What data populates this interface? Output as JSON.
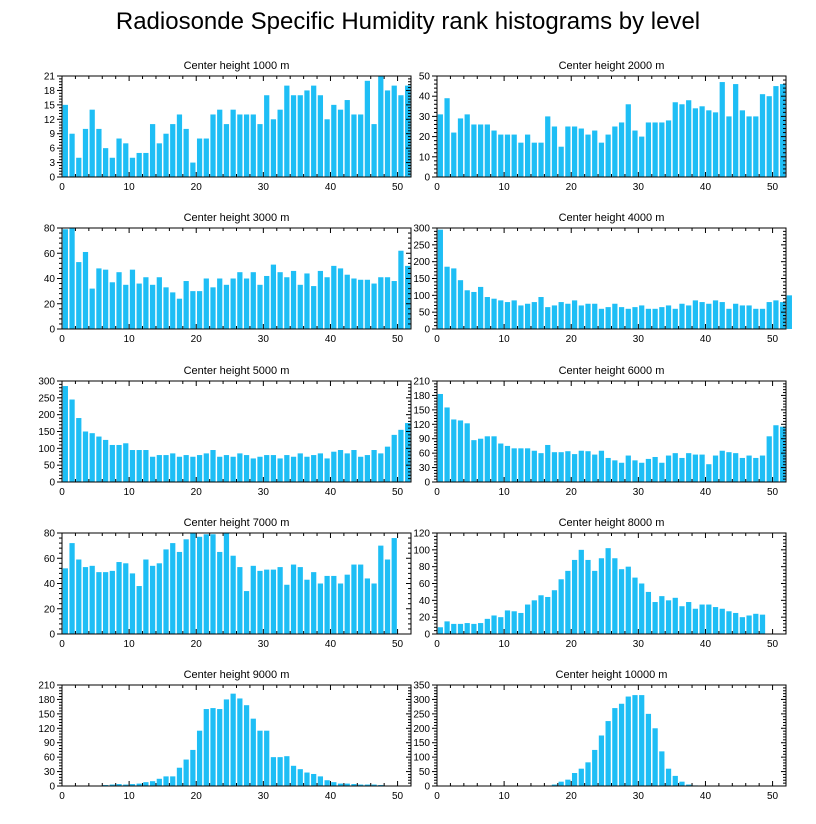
{
  "figure_title": "Radiosonde Specific Humidity rank histograms by level",
  "bar_color": "#1EBEF5",
  "chart_data": [
    {
      "type": "bar",
      "title": "Center height 1000 m",
      "xlim": [
        0,
        52
      ],
      "ylim": [
        0,
        21
      ],
      "xticks": [
        0,
        10,
        20,
        30,
        40,
        50
      ],
      "yticks": [
        0,
        3,
        6,
        9,
        12,
        15,
        18,
        21
      ],
      "values": [
        15,
        9,
        4,
        10,
        14,
        10,
        6,
        4,
        8,
        7,
        4,
        5,
        5,
        11,
        7,
        9,
        11,
        13,
        10,
        3,
        8,
        8,
        13,
        14,
        11,
        14,
        13,
        13,
        13,
        11,
        17,
        12,
        14,
        19,
        17,
        17,
        18,
        19,
        17,
        12,
        15,
        14,
        16,
        13,
        13,
        20,
        11,
        21,
        18,
        19,
        17,
        19
      ]
    },
    {
      "type": "bar",
      "title": "Center height 2000 m",
      "xlim": [
        0,
        52
      ],
      "ylim": [
        0,
        50
      ],
      "xticks": [
        0,
        10,
        20,
        30,
        40,
        50
      ],
      "yticks": [
        0,
        10,
        20,
        30,
        40,
        50
      ],
      "values": [
        31,
        39,
        22,
        29,
        31,
        26,
        26,
        26,
        23,
        21,
        21,
        21,
        17,
        21,
        17,
        17,
        30,
        25,
        15,
        25,
        25,
        24,
        21,
        23,
        17,
        21,
        25,
        27,
        36,
        23,
        20,
        27,
        27,
        27,
        28,
        37,
        36,
        38,
        34,
        35,
        33,
        32,
        47,
        30,
        46,
        33,
        30,
        30,
        41,
        40,
        45,
        46
      ]
    },
    {
      "type": "bar",
      "title": "Center height 3000 m",
      "xlim": [
        0,
        52
      ],
      "ylim": [
        0,
        80
      ],
      "xticks": [
        0,
        10,
        20,
        30,
        40,
        50
      ],
      "yticks": [
        0,
        20,
        40,
        60,
        80
      ],
      "values": [
        79,
        80,
        53,
        61,
        32,
        48,
        47,
        37,
        45,
        35,
        47,
        36,
        41,
        35,
        41,
        33,
        29,
        24,
        38,
        30,
        30,
        40,
        33,
        40,
        35,
        40,
        45,
        40,
        45,
        35,
        42,
        51,
        45,
        41,
        46,
        35,
        44,
        34,
        46,
        41,
        50,
        48,
        43,
        40,
        39,
        39,
        36,
        41,
        41,
        38,
        62,
        50
      ]
    },
    {
      "type": "bar",
      "title": "Center height 4000 m",
      "xlim": [
        0,
        52
      ],
      "ylim": [
        0,
        300
      ],
      "xticks": [
        0,
        10,
        20,
        30,
        40,
        50
      ],
      "yticks": [
        0,
        50,
        100,
        150,
        200,
        250,
        300
      ],
      "values": [
        295,
        185,
        180,
        145,
        115,
        110,
        125,
        95,
        90,
        85,
        80,
        85,
        70,
        75,
        80,
        95,
        65,
        70,
        80,
        75,
        85,
        70,
        75,
        75,
        60,
        65,
        75,
        65,
        60,
        65,
        70,
        60,
        60,
        65,
        70,
        60,
        75,
        70,
        85,
        80,
        75,
        85,
        80,
        60,
        75,
        70,
        70,
        60,
        60,
        80,
        85,
        80,
        100
      ]
    },
    {
      "type": "bar",
      "title": "Center height 5000 m",
      "xlim": [
        0,
        52
      ],
      "ylim": [
        0,
        300
      ],
      "xticks": [
        0,
        10,
        20,
        30,
        40,
        50
      ],
      "yticks": [
        0,
        50,
        100,
        150,
        200,
        250,
        300
      ],
      "values": [
        285,
        245,
        190,
        150,
        145,
        135,
        125,
        110,
        110,
        115,
        95,
        95,
        95,
        75,
        80,
        80,
        85,
        75,
        80,
        75,
        80,
        85,
        95,
        75,
        80,
        75,
        85,
        80,
        70,
        75,
        80,
        80,
        70,
        80,
        75,
        85,
        75,
        80,
        85,
        70,
        90,
        95,
        85,
        95,
        75,
        80,
        95,
        85,
        105,
        140,
        155,
        175
      ]
    },
    {
      "type": "bar",
      "title": "Center height 6000 m",
      "xlim": [
        0,
        52
      ],
      "ylim": [
        0,
        210
      ],
      "xticks": [
        0,
        10,
        20,
        30,
        40,
        50
      ],
      "yticks": [
        0,
        30,
        60,
        90,
        120,
        150,
        180,
        210
      ],
      "values": [
        183,
        155,
        130,
        128,
        122,
        87,
        90,
        95,
        95,
        80,
        75,
        70,
        70,
        70,
        65,
        60,
        77,
        62,
        62,
        64,
        58,
        65,
        64,
        57,
        65,
        50,
        45,
        40,
        55,
        45,
        40,
        48,
        52,
        40,
        55,
        60,
        50,
        60,
        57,
        57,
        37,
        55,
        65,
        62,
        60,
        50,
        55,
        50,
        55,
        95,
        118,
        115
      ]
    },
    {
      "type": "bar",
      "title": "Center height 7000 m",
      "xlim": [
        0,
        52
      ],
      "ylim": [
        0,
        80
      ],
      "xticks": [
        0,
        10,
        20,
        30,
        40,
        50
      ],
      "yticks": [
        0,
        20,
        40,
        60,
        80
      ],
      "values": [
        52,
        72,
        59,
        53,
        54,
        49,
        49,
        50,
        57,
        56,
        48,
        38,
        59,
        54,
        56,
        67,
        72,
        65,
        75,
        80,
        77,
        79,
        79,
        65,
        80,
        62,
        53,
        34,
        54,
        50,
        51,
        51,
        53,
        39,
        55,
        53,
        43,
        49,
        40,
        46,
        46,
        40,
        47,
        55,
        55,
        44,
        40,
        70,
        59,
        76
      ]
    },
    {
      "type": "bar",
      "title": "Center height 8000 m",
      "xlim": [
        0,
        52
      ],
      "ylim": [
        0,
        120
      ],
      "xticks": [
        0,
        10,
        20,
        30,
        40,
        50
      ],
      "yticks": [
        0,
        20,
        40,
        60,
        80,
        100,
        120
      ],
      "values": [
        8,
        15,
        12,
        12,
        13,
        12,
        13,
        18,
        22,
        20,
        28,
        27,
        25,
        35,
        40,
        46,
        44,
        52,
        65,
        75,
        88,
        100,
        88,
        75,
        90,
        102,
        90,
        77,
        80,
        67,
        60,
        50,
        38,
        45,
        40,
        43,
        33,
        38,
        30,
        35,
        35,
        32,
        30,
        27,
        25,
        20,
        22,
        24,
        23
      ]
    },
    {
      "type": "bar",
      "title": "Center height 9000 m",
      "xlim": [
        0,
        52
      ],
      "ylim": [
        0,
        210
      ],
      "xticks": [
        0,
        10,
        20,
        30,
        40,
        50
      ],
      "yticks": [
        0,
        30,
        60,
        90,
        120,
        150,
        180,
        210
      ],
      "values": [
        0,
        0,
        0,
        0,
        0,
        0,
        2,
        3,
        4,
        3,
        4,
        5,
        8,
        10,
        15,
        20,
        20,
        38,
        55,
        75,
        115,
        160,
        162,
        160,
        180,
        192,
        182,
        168,
        140,
        115,
        115,
        60,
        60,
        62,
        42,
        35,
        28,
        25,
        20,
        12,
        8,
        5,
        5,
        4,
        3,
        3,
        3,
        2,
        1,
        0,
        0
      ]
    },
    {
      "type": "bar",
      "title": "Center height 10000 m",
      "xlim": [
        0,
        52
      ],
      "ylim": [
        0,
        350
      ],
      "xticks": [
        0,
        10,
        20,
        30,
        40,
        50
      ],
      "yticks": [
        0,
        50,
        100,
        150,
        200,
        250,
        300,
        350
      ],
      "values": [
        0,
        0,
        0,
        0,
        0,
        0,
        0,
        0,
        0,
        0,
        0,
        0,
        0,
        0,
        0,
        0,
        0,
        5,
        15,
        22,
        45,
        60,
        82,
        125,
        175,
        225,
        270,
        285,
        310,
        315,
        315,
        250,
        200,
        120,
        60,
        35,
        15,
        5,
        2,
        0,
        0,
        0,
        0,
        0,
        0,
        0,
        0,
        0,
        0,
        0,
        0
      ]
    }
  ]
}
